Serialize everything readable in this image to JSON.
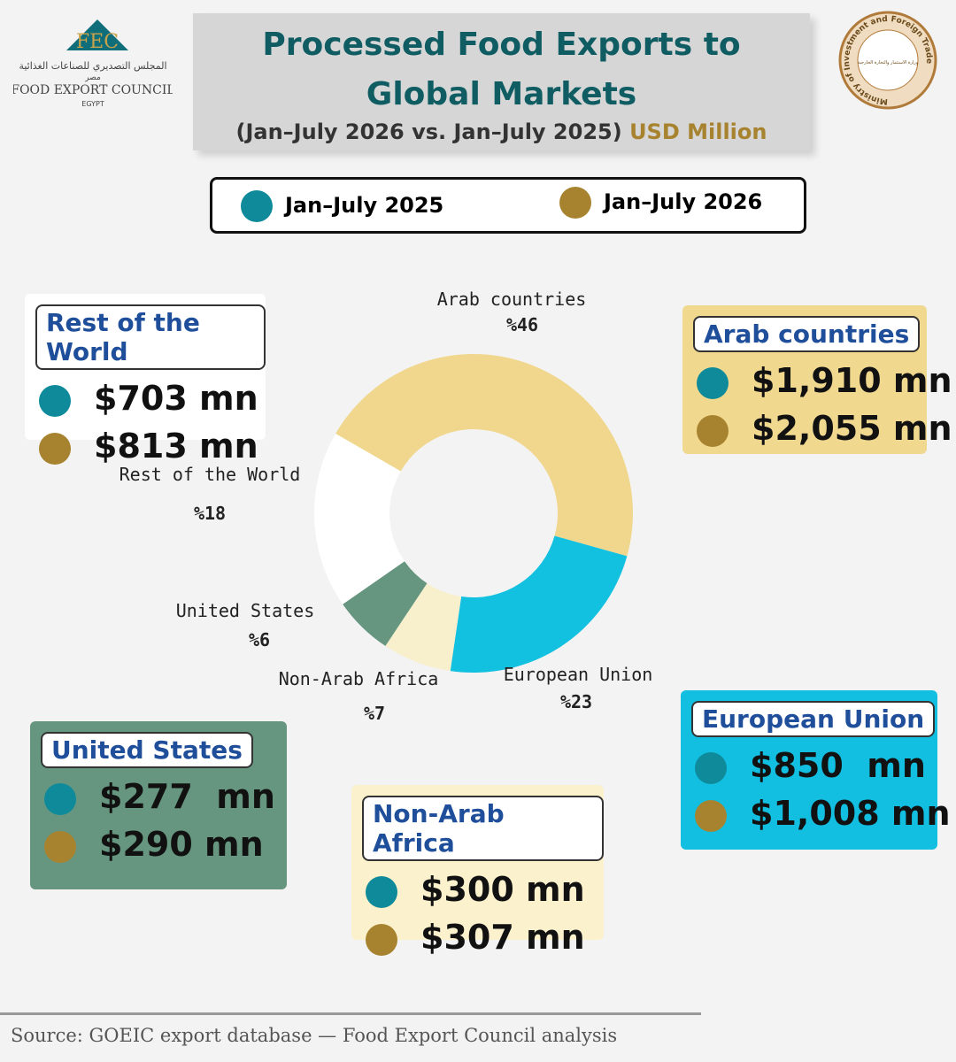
{
  "logo_left": {
    "mark": "FEC",
    "arabic": "المجلس التصديري للصناعات الغذائية",
    "arabic_country": "مصر",
    "name": "FOOD EXPORT COUNCIL",
    "country": "EGYPT"
  },
  "logo_right": {
    "ring": "Ministry of Investment and Foreign Trade",
    "arabic": "وزارة الاستثمار والتجارة الخارجية"
  },
  "header": {
    "title": "Processed Food Exports to Global Markets",
    "subtitle": "(Jan–July 2026 vs. Jan–July 2025)",
    "unit": "USD Million"
  },
  "legend": [
    {
      "name": "Jan–July 2025",
      "color": "#0e8a9a"
    },
    {
      "name": "Jan–July 2026",
      "color": "#a8832f"
    }
  ],
  "chart_data": {
    "type": "pie",
    "donut": true,
    "categories": [
      "Arab countries",
      "European Union",
      "Non-Arab Africa",
      "United States",
      "Rest of the World"
    ],
    "values": [
      46,
      23,
      7,
      6,
      18
    ],
    "value_labels": [
      "%46",
      "%23",
      "%7",
      "%6",
      "%18"
    ],
    "colors": [
      "#f0d78d",
      "#12c0e0",
      "#f8efcc",
      "#66967f",
      "#ffffff"
    ]
  },
  "boxes": [
    {
      "title": "Rest of the World",
      "values": [
        "$703 mn",
        "$813 mn"
      ]
    },
    {
      "title": "Arab countries",
      "values": [
        "$1,910 mn",
        "$2,055 mn"
      ]
    },
    {
      "title": "United States",
      "values": [
        "$277  mn",
        "$290 mn"
      ]
    },
    {
      "title": "Non-Arab Africa",
      "values": [
        "$300 mn",
        "$307 mn"
      ]
    },
    {
      "title": "European Union",
      "values": [
        "$850  mn",
        "$1,008 mn"
      ]
    }
  ],
  "source": "Source: GOEIC export database — Food Export Council analysis"
}
